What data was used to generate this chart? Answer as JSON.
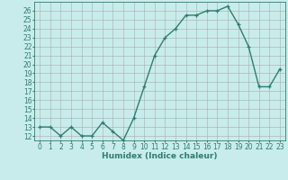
{
  "x": [
    0,
    1,
    2,
    3,
    4,
    5,
    6,
    7,
    8,
    9,
    10,
    11,
    12,
    13,
    14,
    15,
    16,
    17,
    18,
    19,
    20,
    21,
    22,
    23
  ],
  "y": [
    13,
    13,
    12,
    13,
    12,
    12,
    13.5,
    12.5,
    11.5,
    14,
    17.5,
    21,
    23,
    24,
    25.5,
    25.5,
    26,
    26,
    26.5,
    24.5,
    22,
    17.5,
    17.5,
    19.5
  ],
  "line_color": "#2e7d6e",
  "marker": "+",
  "bg_color": "#c8ecec",
  "grid_color": "#aaaaaa",
  "xlabel": "Humidex (Indice chaleur)",
  "ylim": [
    11.5,
    27
  ],
  "xlim": [
    -0.5,
    23.5
  ],
  "yticks": [
    12,
    13,
    14,
    15,
    16,
    17,
    18,
    19,
    20,
    21,
    22,
    23,
    24,
    25,
    26
  ],
  "xticks": [
    0,
    1,
    2,
    3,
    4,
    5,
    6,
    7,
    8,
    9,
    10,
    11,
    12,
    13,
    14,
    15,
    16,
    17,
    18,
    19,
    20,
    21,
    22,
    23
  ],
  "tick_fontsize": 5.5,
  "label_fontsize": 6.5,
  "line_width": 1.0,
  "marker_size": 3.5
}
